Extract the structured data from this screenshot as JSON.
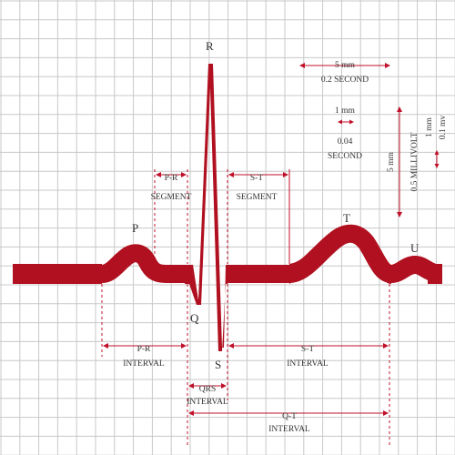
{
  "colors": {
    "trace": "#b0101f",
    "grid": "#c8c8c8",
    "annotation": "#c0102a",
    "text": "#333333"
  },
  "waves": {
    "p": "P",
    "q": "Q",
    "r": "R",
    "s": "S",
    "t": "T",
    "u": "U"
  },
  "segments": {
    "pr_segment": [
      "P-R",
      "SEGMENT"
    ],
    "st_segment": [
      "S-T",
      "SEGMENT"
    ]
  },
  "intervals": {
    "pr_interval": [
      "P-R",
      "INTERVAL"
    ],
    "qrs_interval": [
      "QRS",
      "INTERVAL"
    ],
    "st_interval": [
      "S-T",
      "INTERVAL"
    ],
    "qt_interval": [
      "Q-T",
      "INTERVAL"
    ]
  },
  "scale": {
    "big_time": [
      "5 mm",
      "0.2 SECOND"
    ],
    "small_time": [
      "1 mm",
      "0.04",
      "SECOND"
    ],
    "big_voltage": [
      "5 mm",
      "0.5 MILLIVOLT"
    ],
    "small_voltage": [
      "1 mm",
      "0.1 mv"
    ]
  }
}
